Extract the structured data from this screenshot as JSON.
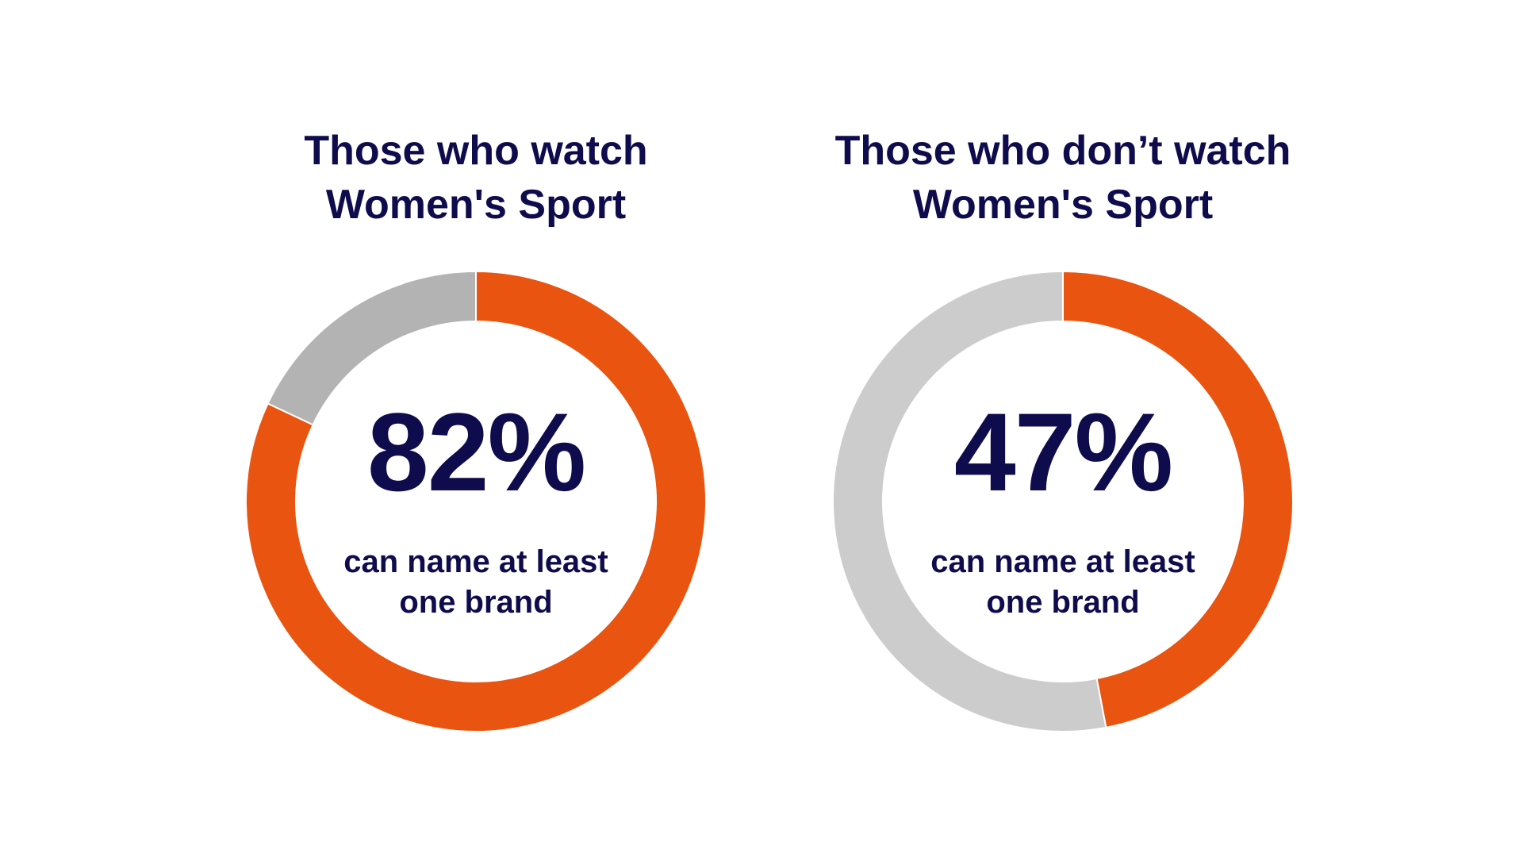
{
  "colors": {
    "text": "#0f0c4d",
    "highlight": "#e95410",
    "rest_left": "#b3b3b3",
    "rest_right": "#cccccc",
    "separator": "#ffffff"
  },
  "chart_data": [
    {
      "type": "pie",
      "donut": true,
      "title_lines": [
        "Those who watch",
        "Women's Sport"
      ],
      "values": [
        82,
        18
      ],
      "center_value": "82%",
      "center_caption_lines": [
        "can name at least",
        "one brand"
      ]
    },
    {
      "type": "pie",
      "donut": true,
      "title_lines": [
        "Those who don’t watch",
        "Women's Sport"
      ],
      "values": [
        47,
        53
      ],
      "center_value": "47%",
      "center_caption_lines": [
        "can name at least",
        "one brand"
      ]
    }
  ]
}
